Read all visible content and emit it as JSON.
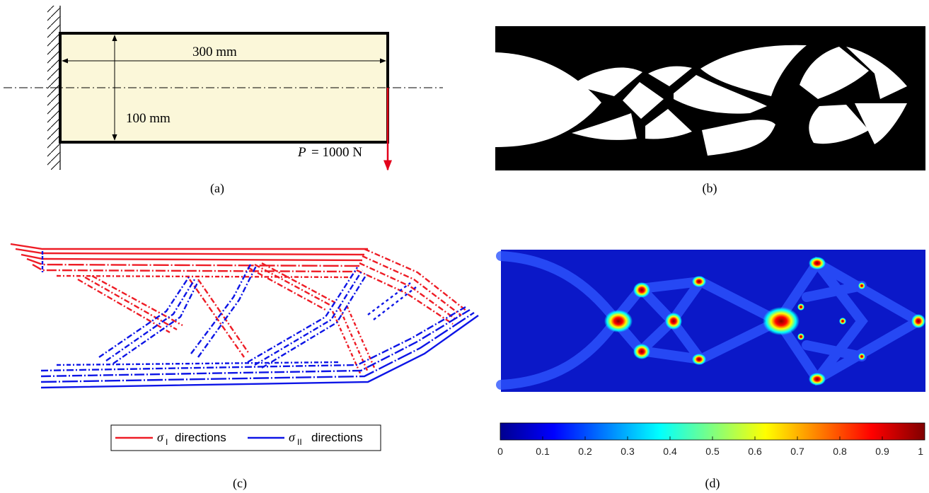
{
  "panel_a": {
    "caption": "(a)",
    "dim_length": "300 mm",
    "dim_height": "100 mm",
    "load_symbol": "P",
    "load_value": "= 1000 N",
    "colors": {
      "beam_fill": "#fbf7d9",
      "load_arrow": "#e3001b"
    }
  },
  "panel_b": {
    "caption": "(b)"
  },
  "panel_c": {
    "caption": "(c)",
    "legend": {
      "item1_symbol": "σ",
      "item1_sub": "I",
      "item1_text": "directions",
      "item2_symbol": "σ",
      "item2_sub": "II",
      "item2_text": "directions"
    },
    "colors": {
      "sigma1": "#ee1c25",
      "sigma2": "#0d15e6"
    }
  },
  "panel_d": {
    "caption": "(d)",
    "colorbar": {
      "ticks": [
        "0",
        "0.1",
        "0.2",
        "0.3",
        "0.4",
        "0.5",
        "0.6",
        "0.7",
        "0.8",
        "0.9",
        "1"
      ],
      "colormap": "jet"
    }
  }
}
